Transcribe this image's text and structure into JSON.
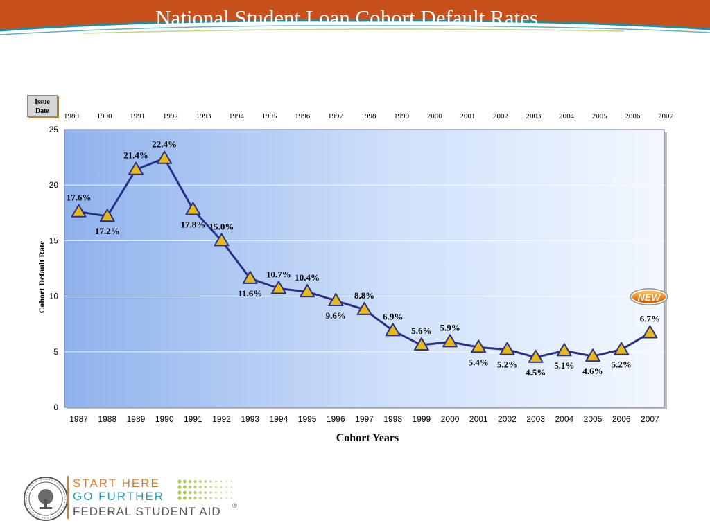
{
  "title": "National Student Loan Cohort Default Rates",
  "issue_label": [
    "Issue",
    "Date"
  ],
  "badge_label": "NEW",
  "logo": {
    "line1": "START HERE",
    "line2": "GO FURTHER",
    "line3": "FEDERAL STUDENT AID",
    "registered": "®"
  },
  "colors": {
    "header_orange": "#c8501a",
    "header_teal": "#1f8fa6",
    "line": "#2a2f8a",
    "marker_fill": "#e6b818",
    "panel_left": "#8fb2ec",
    "panel_right": "#f3f8ff",
    "logo_orange": "#e07a2a",
    "logo_teal": "#2a9fbf",
    "logo_dots": "#a5c84a"
  },
  "chart_data": {
    "type": "line",
    "title": "",
    "xlabel": "Cohort Years",
    "ylabel": "Cohort Default Rate",
    "ylim": [
      0,
      25
    ],
    "yticks": [
      0,
      5,
      10,
      15,
      20,
      25
    ],
    "grid": true,
    "categories": [
      "1987",
      "1988",
      "1989",
      "1990",
      "1991",
      "1992",
      "1993",
      "1994",
      "1995",
      "1996",
      "1997",
      "1998",
      "1999",
      "2000",
      "2001",
      "2002",
      "2003",
      "2004",
      "2005",
      "2006",
      "2007"
    ],
    "issue_dates": [
      "1989",
      "1990",
      "1991",
      "1992",
      "1993",
      "1994",
      "1995",
      "1996",
      "1997",
      "1998",
      "1999",
      "2000",
      "2001",
      "2002",
      "2003",
      "2004",
      "2005",
      "2006",
      "2007"
    ],
    "series": [
      {
        "values": [
          17.6,
          17.2,
          21.4,
          22.4,
          17.8,
          15.0,
          11.6,
          10.7,
          10.4,
          9.6,
          8.8,
          6.9,
          5.6,
          5.9,
          5.4,
          5.2,
          4.5,
          5.1,
          4.6,
          5.2,
          6.7
        ],
        "labels": [
          "17.6%",
          "17.2%",
          "21.4%",
          "22.4%",
          "17.8%",
          "15.0%",
          "11.6%",
          "10.7%",
          "10.4%",
          "9.6%",
          "8.8%",
          "6.9%",
          "5.6%",
          "5.9%",
          "5.4%",
          "5.2%",
          "4.5%",
          "5.1%",
          "4.6%",
          "5.2%",
          "6.7%"
        ]
      }
    ]
  }
}
